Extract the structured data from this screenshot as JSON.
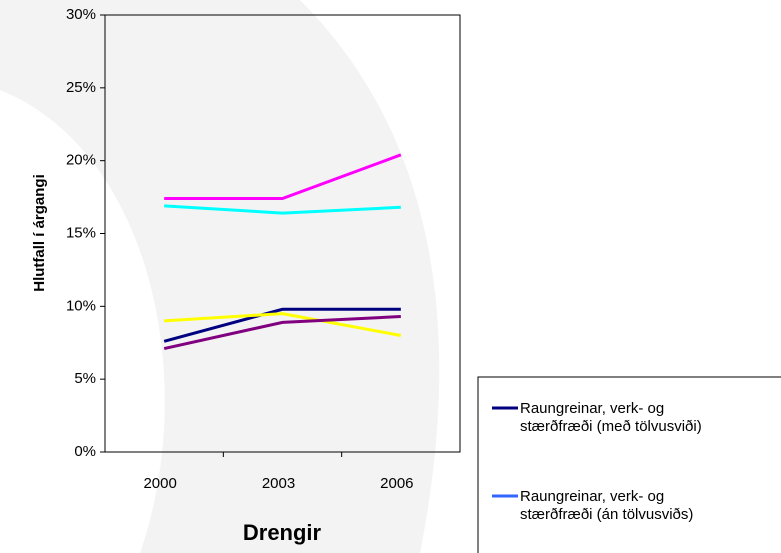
{
  "chart_data": {
    "type": "line",
    "categories": [
      "2000",
      "2003",
      "2006"
    ],
    "x_label": "Drengir",
    "y_label": "Hlutfall í árgangi",
    "ylim": [
      0,
      30
    ],
    "yticks": [
      {
        "value": 0,
        "label": "0%"
      },
      {
        "value": 5,
        "label": "5%"
      },
      {
        "value": 10,
        "label": "10%"
      },
      {
        "value": 15,
        "label": "15%"
      },
      {
        "value": 20,
        "label": "20%"
      },
      {
        "value": 25,
        "label": "25%"
      },
      {
        "value": 30,
        "label": "30%"
      }
    ],
    "series": [
      {
        "name": "Raungreinar, verk- og stærðfræði (með tölvusviði)",
        "color": "#000080",
        "values": [
          7.6,
          9.8,
          9.8
        ]
      },
      {
        "name": "Raungreinar, verk- og stærðfræði (án tölvusviðs)",
        "color": "#3366ff",
        "values": [
          null,
          null,
          null
        ]
      },
      {
        "color": "#ff00ff",
        "values": [
          17.4,
          17.4,
          20.4
        ]
      },
      {
        "color": "#00ffff",
        "values": [
          16.9,
          16.4,
          16.8
        ]
      },
      {
        "color": "#ffff00",
        "values": [
          9.0,
          9.5,
          8.0
        ]
      },
      {
        "color": "#800080",
        "values": [
          7.1,
          8.9,
          9.3
        ]
      }
    ]
  }
}
